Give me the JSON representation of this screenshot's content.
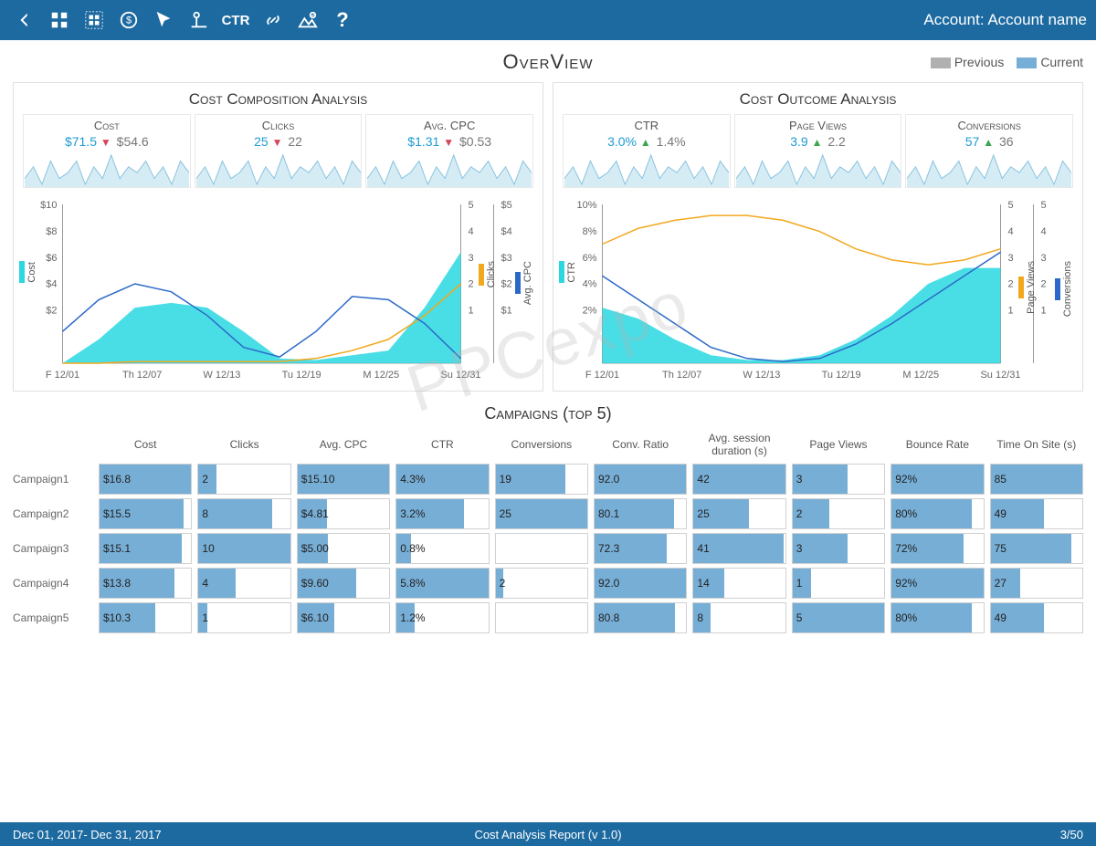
{
  "colors": {
    "topbar": "#1d6aa0",
    "current": "#77aed6",
    "previous": "#b0b0b0",
    "area_cyan": "#29d8e0",
    "line_orange": "#f2a81d",
    "line_blue": "#2b69c8",
    "spark_fill": "#d6ecf5",
    "spark_line": "#8ac3de"
  },
  "topbar": {
    "account_label": "Account: Account name",
    "ctr": "CTR",
    "question": "?"
  },
  "header": {
    "title": "OverView",
    "legend_previous": "Previous",
    "legend_current": "Current"
  },
  "watermark": "PPCexpo",
  "left_panel": {
    "title": "Cost Composition Analysis",
    "kpis": [
      {
        "label": "Cost",
        "current": "$71.5",
        "dir": "down",
        "previous": "$54.6"
      },
      {
        "label": "Clicks",
        "current": "25",
        "dir": "down",
        "previous": "22"
      },
      {
        "label": "Avg. CPC",
        "current": "$1.31",
        "dir": "down",
        "previous": "$0.53"
      }
    ],
    "chart": {
      "y_left": {
        "label": "Cost",
        "ticks": [
          "$10",
          "$8",
          "$6",
          "$4",
          "$2"
        ],
        "color": "#29d8e0"
      },
      "y_r1": {
        "label": "Clicks",
        "ticks": [
          "5",
          "4",
          "3",
          "2",
          "1"
        ],
        "color": "#f2a81d"
      },
      "y_r2": {
        "label": "Avg. CPC",
        "ticks": [
          "$5",
          "$4",
          "$3",
          "$2",
          "$1"
        ],
        "color": "#2b69c8"
      },
      "x_labels": [
        "F 12/01",
        "Th 12/07",
        "W 12/13",
        "Tu 12/19",
        "M 12/25",
        "Su 12/31"
      ],
      "area_cyan": [
        0,
        1.5,
        3.5,
        3.8,
        3.5,
        2,
        0.3,
        0.2,
        0.5,
        0.8,
        3.5,
        7
      ],
      "line_orange": [
        0,
        0,
        0.1,
        0.1,
        0.1,
        0.1,
        0.1,
        0.3,
        0.8,
        1.5,
        3,
        5
      ],
      "line_blue": [
        2,
        4,
        5,
        4.5,
        3,
        1,
        0.4,
        2,
        4.2,
        4,
        2.5,
        0.3
      ]
    }
  },
  "right_panel": {
    "title": "Cost Outcome Analysis",
    "kpis": [
      {
        "label": "CTR",
        "current": "3.0%",
        "dir": "up",
        "previous": "1.4%"
      },
      {
        "label": "Page Views",
        "current": "3.9",
        "dir": "up",
        "previous": "2.2"
      },
      {
        "label": "Conversions",
        "current": "57",
        "dir": "up",
        "previous": "36"
      }
    ],
    "chart": {
      "y_left": {
        "label": "CTR",
        "ticks": [
          "10%",
          "8%",
          "6%",
          "4%",
          "2%"
        ],
        "color": "#29d8e0"
      },
      "y_r1": {
        "label": "Page Views",
        "ticks": [
          "5",
          "4",
          "3",
          "2",
          "1"
        ],
        "color": "#f2a81d"
      },
      "y_r2": {
        "label": "Conversions",
        "ticks": [
          "5",
          "4",
          "3",
          "2",
          "1"
        ],
        "color": "#2b69c8"
      },
      "x_labels": [
        "F 12/01",
        "Th 12/07",
        "W 12/13",
        "Tu 12/19",
        "M 12/25",
        "Su 12/31"
      ],
      "area_cyan": [
        3.5,
        2.8,
        1.5,
        0.5,
        0.2,
        0.2,
        0.5,
        1.5,
        3,
        5,
        6,
        6
      ],
      "line_orange": [
        7.5,
        8.5,
        9,
        9.3,
        9.3,
        9,
        8.3,
        7.2,
        6.5,
        6.2,
        6.5,
        7.2
      ],
      "line_blue": [
        5.5,
        4,
        2.5,
        1,
        0.3,
        0.1,
        0.3,
        1.2,
        2.5,
        4,
        5.5,
        7
      ]
    }
  },
  "sparkline": [
    5,
    7,
    4,
    8,
    5,
    6,
    8,
    4,
    7,
    5,
    9,
    5,
    7,
    6,
    8,
    5,
    7,
    4,
    8,
    6
  ],
  "campaigns": {
    "title": "Campaigns (top 5)",
    "columns": [
      "Cost",
      "Clicks",
      "Avg. CPC",
      "CTR",
      "Conversions",
      "Conv. Ratio",
      "Avg. session duration (s)",
      "Page Views",
      "Bounce Rate",
      "Time On Site (s)"
    ],
    "rows": [
      {
        "name": "Campaign1",
        "cells": [
          {
            "v": "$16.8",
            "p": 100
          },
          {
            "v": "2",
            "p": 20
          },
          {
            "v": "$15.10",
            "p": 100
          },
          {
            "v": "4.3%",
            "p": 100
          },
          {
            "v": "19",
            "p": 76
          },
          {
            "v": "92.0",
            "p": 100
          },
          {
            "v": "42",
            "p": 100
          },
          {
            "v": "3",
            "p": 60
          },
          {
            "v": "92%",
            "p": 100
          },
          {
            "v": "85",
            "p": 100
          }
        ]
      },
      {
        "name": "Campaign2",
        "cells": [
          {
            "v": "$15.5",
            "p": 92
          },
          {
            "v": "8",
            "p": 80
          },
          {
            "v": "$4.81",
            "p": 32
          },
          {
            "v": "3.2%",
            "p": 74
          },
          {
            "v": "25",
            "p": 100
          },
          {
            "v": "80.1",
            "p": 87
          },
          {
            "v": "25",
            "p": 60
          },
          {
            "v": "2",
            "p": 40
          },
          {
            "v": "80%",
            "p": 87
          },
          {
            "v": "49",
            "p": 58
          }
        ]
      },
      {
        "name": "Campaign3",
        "cells": [
          {
            "v": "$15.1",
            "p": 90
          },
          {
            "v": "10",
            "p": 100
          },
          {
            "v": "$5.00",
            "p": 33
          },
          {
            "v": "0.8%",
            "p": 16
          },
          {
            "v": "",
            "p": 0
          },
          {
            "v": "72.3",
            "p": 79
          },
          {
            "v": "41",
            "p": 98
          },
          {
            "v": "3",
            "p": 60
          },
          {
            "v": "72%",
            "p": 78
          },
          {
            "v": "75",
            "p": 88
          }
        ]
      },
      {
        "name": "Campaign4",
        "cells": [
          {
            "v": "$13.8",
            "p": 82
          },
          {
            "v": "4",
            "p": 40
          },
          {
            "v": "$9.60",
            "p": 64
          },
          {
            "v": "5.8%",
            "p": 100
          },
          {
            "v": "2",
            "p": 8
          },
          {
            "v": "92.0",
            "p": 100
          },
          {
            "v": "14",
            "p": 33
          },
          {
            "v": "1",
            "p": 20
          },
          {
            "v": "92%",
            "p": 100
          },
          {
            "v": "27",
            "p": 32
          }
        ]
      },
      {
        "name": "Campaign5",
        "cells": [
          {
            "v": "$10.3",
            "p": 61
          },
          {
            "v": "1",
            "p": 10
          },
          {
            "v": "$6.10",
            "p": 40
          },
          {
            "v": "1.2%",
            "p": 20
          },
          {
            "v": "",
            "p": 0
          },
          {
            "v": "80.8",
            "p": 88
          },
          {
            "v": "8",
            "p": 19
          },
          {
            "v": "5",
            "p": 100
          },
          {
            "v": "80%",
            "p": 87
          },
          {
            "v": "49",
            "p": 58
          }
        ]
      }
    ]
  },
  "footer": {
    "left": "Dec 01, 2017- Dec 31, 2017",
    "center": "Cost Analysis Report (v 1.0)",
    "right": "3/50"
  }
}
